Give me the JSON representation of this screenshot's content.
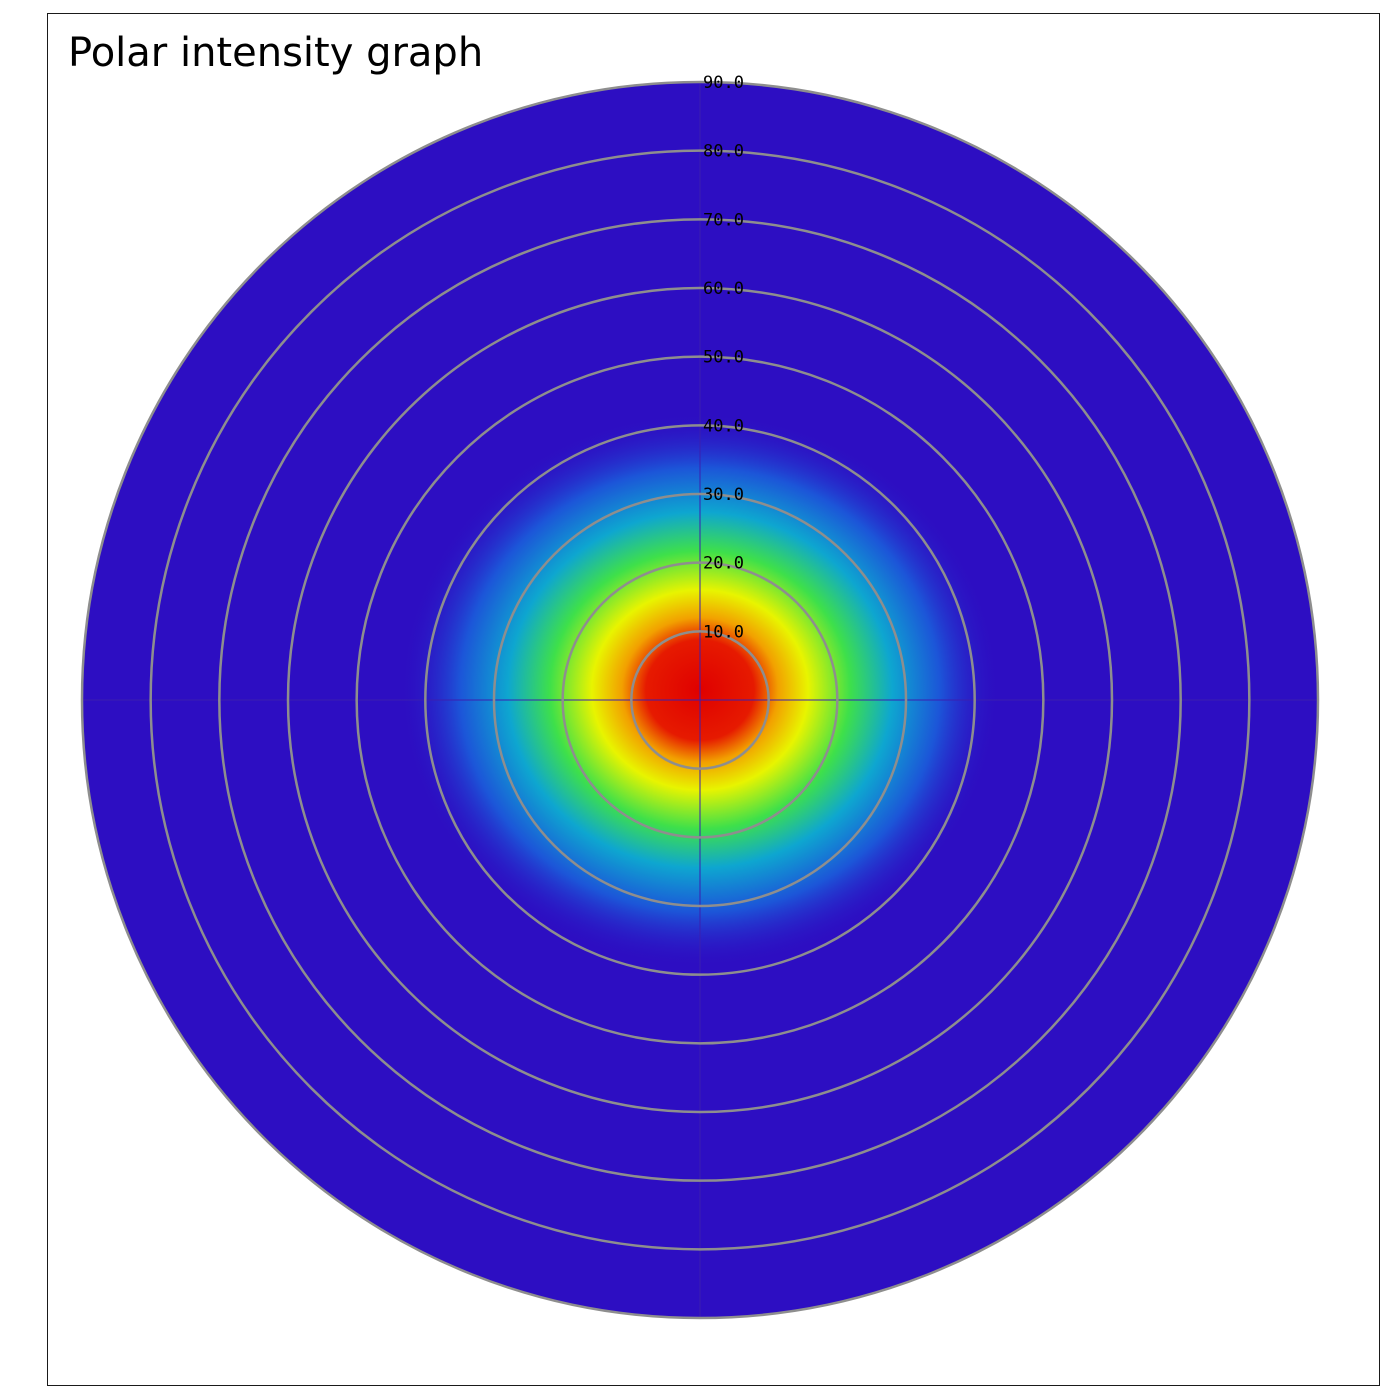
{
  "chart_data": {
    "type": "heatmap",
    "title": "Polar intensity graph",
    "coordinate_system": "polar",
    "radial_ticks": [
      "10.0",
      "20.0",
      "30.0",
      "40.0",
      "50.0",
      "60.0",
      "70.0",
      "80.0",
      "90.0"
    ],
    "radial_range": [
      0,
      90
    ],
    "grid": true,
    "colormap": "rainbow (blue-green-yellow-red)",
    "colors": {
      "background": "#2d0ec2",
      "low": "#2d0ec2",
      "mid_low": "#1a6ee0",
      "mid": "#19d36b",
      "mid_high": "#e8f400",
      "high": "#e30000",
      "grid": "#8e8e8e"
    },
    "hotspot": {
      "center_angle_offset_x": 0,
      "center_angle_offset_y": 0,
      "peak_radius": 6,
      "falloff_radius": 30
    }
  }
}
